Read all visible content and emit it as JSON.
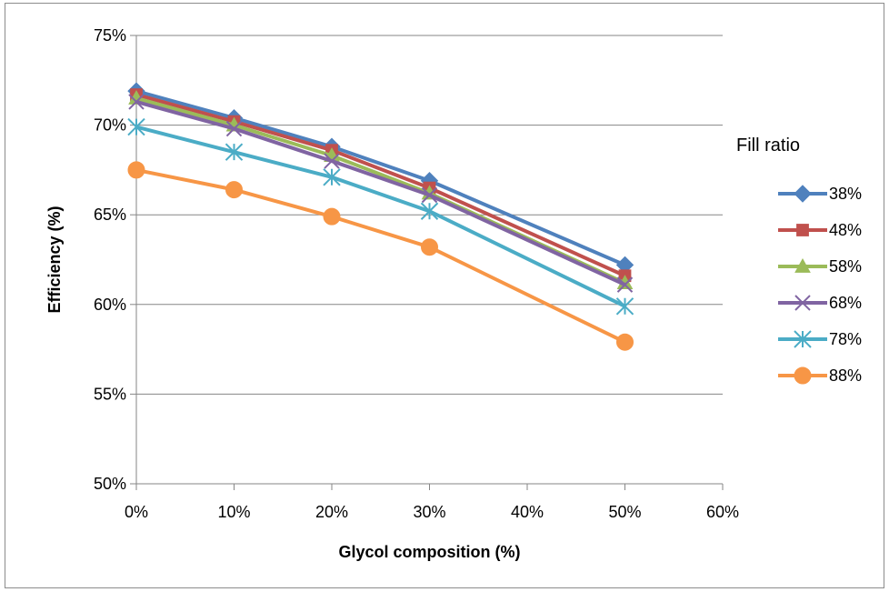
{
  "chart_data": {
    "type": "line",
    "xlabel": "Glycol composition (%)",
    "ylabel": "Efficiency (%)",
    "x": [
      0,
      10,
      20,
      30,
      50
    ],
    "xlim": [
      0,
      60
    ],
    "ylim": [
      50,
      75
    ],
    "x_ticks": [
      0,
      10,
      20,
      30,
      40,
      50,
      60
    ],
    "x_tick_labels": [
      "0%",
      "10%",
      "20%",
      "30%",
      "40%",
      "50%",
      "60%"
    ],
    "y_ticks": [
      50,
      55,
      60,
      65,
      70,
      75
    ],
    "y_tick_labels": [
      "50%",
      "55%",
      "60%",
      "65%",
      "70%",
      "75%"
    ],
    "grid": "horizontal",
    "legend": {
      "title": "Fill ratio",
      "placement": "right"
    },
    "series": [
      {
        "name": "38%",
        "values": [
          71.9,
          70.4,
          68.8,
          66.9,
          62.2
        ],
        "color": "#4f81bd",
        "marker": "diamond"
      },
      {
        "name": "48%",
        "values": [
          71.7,
          70.2,
          68.6,
          66.5,
          61.6
        ],
        "color": "#c0504d",
        "marker": "square"
      },
      {
        "name": "58%",
        "values": [
          71.5,
          70.0,
          68.3,
          66.2,
          61.2
        ],
        "color": "#9bbb59",
        "marker": "triangle"
      },
      {
        "name": "68%",
        "values": [
          71.3,
          69.8,
          68.0,
          66.1,
          61.1
        ],
        "color": "#8064a2",
        "marker": "x"
      },
      {
        "name": "78%",
        "values": [
          69.9,
          68.5,
          67.1,
          65.2,
          59.9
        ],
        "color": "#4bacc6",
        "marker": "star"
      },
      {
        "name": "88%",
        "values": [
          67.5,
          66.4,
          64.9,
          63.2,
          57.9
        ],
        "color": "#f79646",
        "marker": "circle"
      }
    ]
  }
}
